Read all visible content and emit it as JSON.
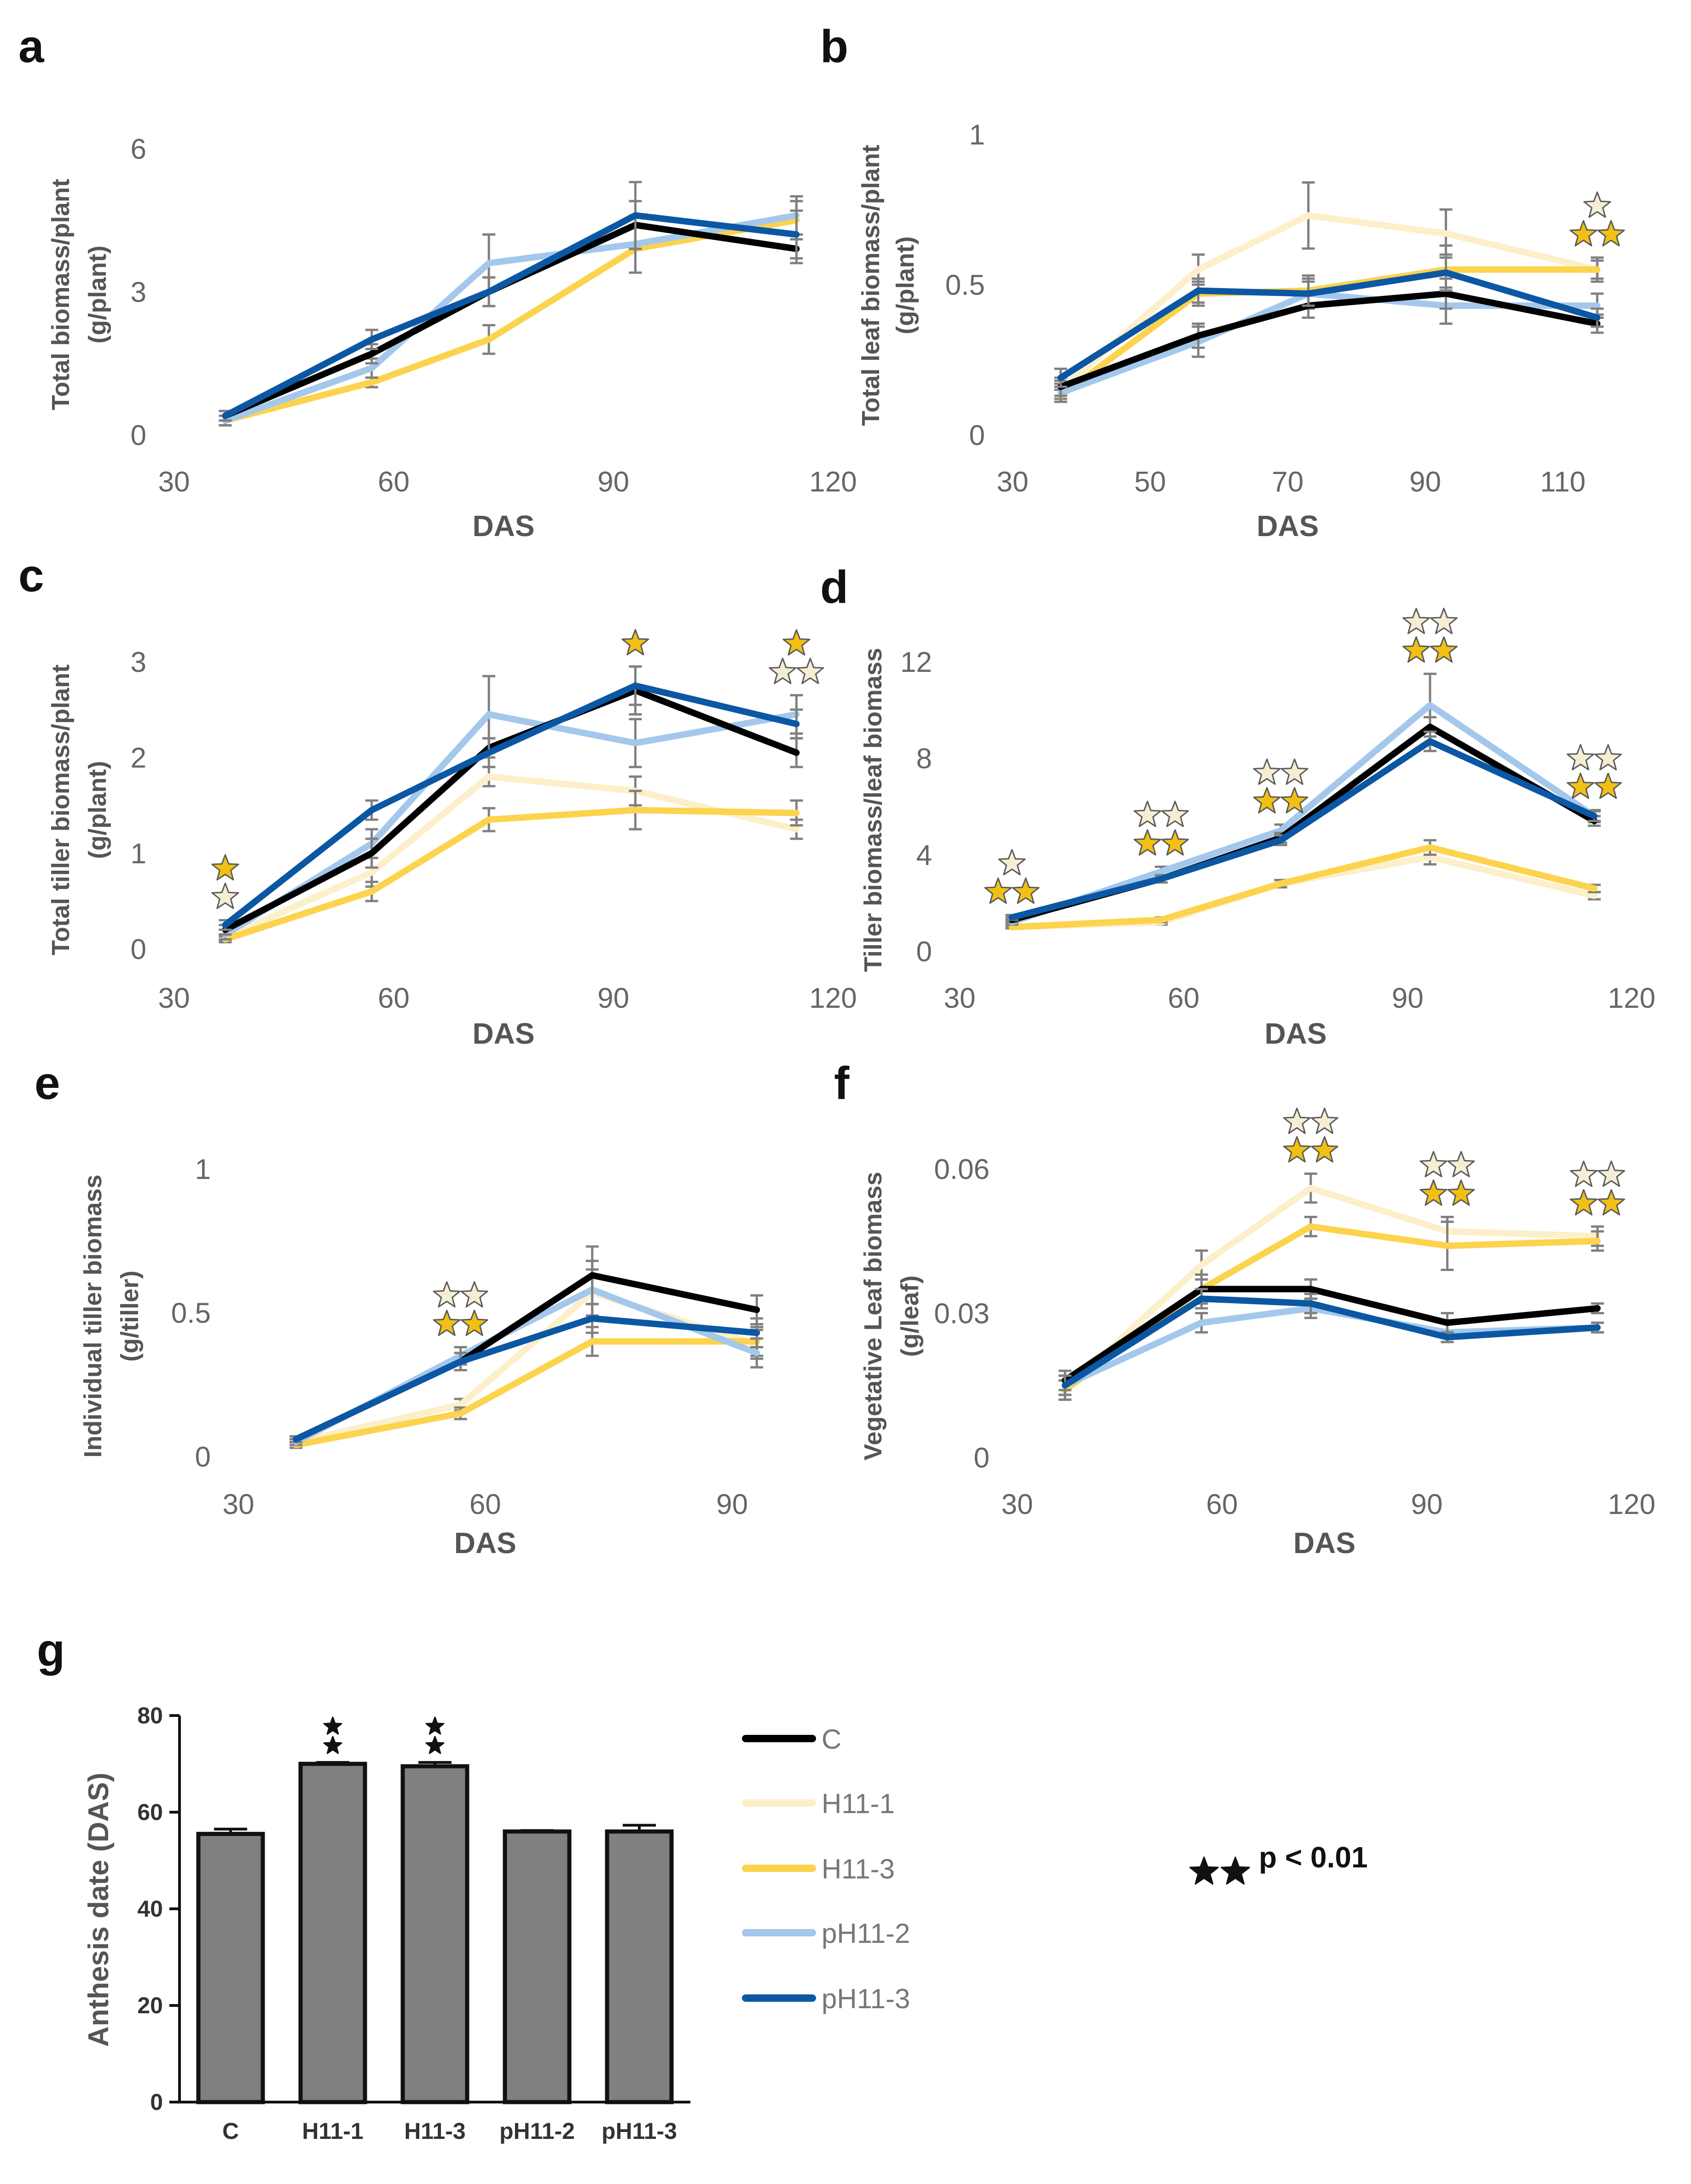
{
  "colors": {
    "C": "#000000",
    "H11-1": "#FCEFC9",
    "H11-3": "#FCD34D",
    "pH11-2": "#A3C8EC",
    "pH11-3": "#0B57A4",
    "error_bar": "#808080",
    "bar_fill": "#808080",
    "star_dark": "#F2C014",
    "star_light": "#F6EED4"
  },
  "legend": {
    "entries": [
      "C",
      "H11-1",
      "H11-3",
      "pH11-2",
      "pH11-3"
    ],
    "significance_label": "p < 0.01"
  },
  "chart_data": [
    {
      "panel": "a",
      "type": "line",
      "xlabel": "DAS",
      "ylabel_lines": [
        "Total biomass/plant",
        "(g/plant)"
      ],
      "xlim": [
        30,
        120
      ],
      "ylim": [
        0,
        6
      ],
      "xticks": [
        30,
        60,
        90,
        120
      ],
      "yticks": [
        0,
        3,
        6
      ],
      "x": [
        37,
        57,
        73,
        93,
        115
      ],
      "series": [
        {
          "name": "C",
          "values": [
            0.4,
            1.7,
            3.0,
            4.4,
            3.9
          ],
          "errors": [
            0.1,
            0.2,
            0.3,
            0.5,
            0.3
          ]
        },
        {
          "name": "H11-1",
          "values": [
            null,
            null,
            null,
            null,
            null
          ],
          "errors": [
            0,
            0,
            0,
            0,
            0
          ]
        },
        {
          "name": "H11-3",
          "values": [
            0.3,
            1.1,
            2.0,
            3.9,
            4.5
          ],
          "errors": [
            0.1,
            0.1,
            0.3,
            0.5,
            0.4
          ]
        },
        {
          "name": "pH11-2",
          "values": [
            0.3,
            1.4,
            3.6,
            4.0,
            4.6
          ],
          "errors": [
            0.1,
            0.2,
            0.6,
            0.6,
            0.4
          ]
        },
        {
          "name": "pH11-3",
          "values": [
            0.4,
            2.0,
            3.0,
            4.6,
            4.2
          ],
          "errors": [
            0.1,
            0.2,
            0.3,
            0.7,
            0.5
          ]
        }
      ],
      "annotations": []
    },
    {
      "panel": "b",
      "type": "line",
      "xlabel": "DAS",
      "ylabel_lines": [
        "Total leaf biomass/plant",
        "(g/plant)"
      ],
      "xlim": [
        30,
        120
      ],
      "ylim": [
        0,
        1
      ],
      "xticks": [
        30,
        50,
        70,
        90,
        110
      ],
      "ytick_labels": [
        "0",
        "0.5",
        "1"
      ],
      "yticks": [
        0,
        0.5,
        1
      ],
      "x": [
        37,
        57,
        73,
        93,
        115
      ],
      "series": [
        {
          "name": "C",
          "values": [
            0.16,
            0.33,
            0.43,
            0.47,
            0.37
          ],
          "errors": [
            0.03,
            0.04,
            0.04,
            0.05,
            0.03
          ]
        },
        {
          "name": "H11-1",
          "values": [
            0.15,
            0.55,
            0.73,
            0.67,
            0.55
          ],
          "errors": [
            0.03,
            0.05,
            0.11,
            0.08,
            0.04
          ]
        },
        {
          "name": "H11-3",
          "values": [
            0.13,
            0.47,
            0.48,
            0.55,
            0.55
          ],
          "errors": [
            0.02,
            0.04,
            0.05,
            0.08,
            0.03
          ]
        },
        {
          "name": "pH11-2",
          "values": [
            0.14,
            0.31,
            0.47,
            0.43,
            0.43
          ],
          "errors": [
            0.03,
            0.05,
            0.05,
            0.06,
            0.04
          ]
        },
        {
          "name": "pH11-3",
          "values": [
            0.19,
            0.48,
            0.47,
            0.54,
            0.39
          ],
          "errors": [
            0.03,
            0.04,
            0.04,
            0.06,
            0.03
          ]
        }
      ],
      "annotations": [
        {
          "x": 115,
          "rows": [
            [
              "light"
            ],
            [
              "dark",
              "dark"
            ]
          ]
        }
      ]
    },
    {
      "panel": "c",
      "type": "line",
      "xlabel": "DAS",
      "ylabel_lines": [
        "Total tiller biomass/plant",
        "(g/plant)"
      ],
      "xlim": [
        30,
        120
      ],
      "ylim": [
        0,
        3
      ],
      "xticks": [
        30,
        60,
        90,
        120
      ],
      "yticks": [
        0,
        1,
        2,
        3
      ],
      "x": [
        37,
        57,
        73,
        93,
        115
      ],
      "series": [
        {
          "name": "C",
          "values": [
            0.2,
            1.0,
            2.1,
            2.7,
            2.05
          ],
          "errors": [
            0.05,
            0.15,
            0.1,
            0.25,
            0.15
          ]
        },
        {
          "name": "H11-1",
          "values": [
            0.12,
            0.8,
            1.8,
            1.65,
            1.25
          ],
          "errors": [
            0.03,
            0.15,
            0.1,
            0.15,
            0.1
          ]
        },
        {
          "name": "H11-3",
          "values": [
            0.1,
            0.6,
            1.35,
            1.45,
            1.42
          ],
          "errors": [
            0.03,
            0.1,
            0.12,
            0.2,
            0.13
          ]
        },
        {
          "name": "pH11-2",
          "values": [
            0.15,
            1.1,
            2.45,
            2.15,
            2.45
          ],
          "errors": [
            0.05,
            0.15,
            0.4,
            0.25,
            0.2
          ]
        },
        {
          "name": "pH11-3",
          "values": [
            0.25,
            1.45,
            2.05,
            2.75,
            2.35
          ],
          "errors": [
            0.05,
            0.1,
            0.15,
            0.2,
            0.15
          ]
        }
      ],
      "annotations": [
        {
          "x": 37,
          "rows": [
            [
              "dark"
            ],
            [
              "light"
            ]
          ]
        },
        {
          "x": 93,
          "rows": [
            [
              "dark"
            ]
          ]
        },
        {
          "x": 115,
          "rows": [
            [
              "dark"
            ],
            [
              "light",
              "light"
            ]
          ]
        }
      ]
    },
    {
      "panel": "d",
      "type": "line",
      "xlabel": "DAS",
      "ylabel_lines": [
        "Tiller biomass/leaf biomass"
      ],
      "xlim": [
        30,
        120
      ],
      "ylim": [
        0,
        12
      ],
      "xticks": [
        30,
        60,
        90,
        120
      ],
      "yticks": [
        0,
        4,
        8,
        12
      ],
      "x": [
        37,
        57,
        73,
        93,
        115
      ],
      "series": [
        {
          "name": "C",
          "values": [
            1.3,
            3.0,
            4.7,
            9.3,
            5.4
          ],
          "errors": [
            0.1,
            0.15,
            0.2,
            0.4,
            0.2
          ]
        },
        {
          "name": "H11-1",
          "values": [
            1.0,
            1.2,
            2.8,
            3.9,
            2.3
          ],
          "errors": [
            0.05,
            0.1,
            0.15,
            0.3,
            0.15
          ]
        },
        {
          "name": "H11-3",
          "values": [
            1.0,
            1.3,
            2.8,
            4.3,
            2.6
          ],
          "errors": [
            0.05,
            0.1,
            0.15,
            0.3,
            0.15
          ]
        },
        {
          "name": "pH11-2",
          "values": [
            1.2,
            3.3,
            5.0,
            10.2,
            5.6
          ],
          "errors": [
            0.1,
            0.2,
            0.25,
            1.3,
            0.25
          ]
        },
        {
          "name": "pH11-3",
          "values": [
            1.4,
            3.0,
            4.6,
            8.7,
            5.6
          ],
          "errors": [
            0.1,
            0.15,
            0.2,
            0.4,
            0.2
          ]
        }
      ],
      "annotations": [
        {
          "x": 37,
          "rows": [
            [
              "light"
            ],
            [
              "dark",
              "dark"
            ]
          ]
        },
        {
          "x": 57,
          "rows": [
            [
              "light",
              "light"
            ],
            [
              "dark",
              "dark"
            ]
          ]
        },
        {
          "x": 73,
          "rows": [
            [
              "light",
              "light"
            ],
            [
              "dark",
              "dark"
            ]
          ]
        },
        {
          "x": 93,
          "rows": [
            [
              "light",
              "light"
            ],
            [
              "dark",
              "dark"
            ]
          ]
        },
        {
          "x": 115,
          "rows": [
            [
              "light",
              "light"
            ],
            [
              "dark",
              "dark"
            ]
          ]
        }
      ]
    },
    {
      "panel": "e",
      "type": "line",
      "xlabel": "DAS",
      "ylabel_lines": [
        "Individual tiller biomass",
        "(g/tiller)"
      ],
      "xlim": [
        30,
        95
      ],
      "ylim": [
        0,
        1
      ],
      "xticks": [
        30,
        60,
        90
      ],
      "ytick_labels": [
        "0",
        "0.5",
        "1"
      ],
      "yticks": [
        0,
        0.5,
        1
      ],
      "x": [
        37,
        57,
        73,
        93
      ],
      "series": [
        {
          "name": "C",
          "values": [
            0.06,
            0.33,
            0.63,
            0.51
          ],
          "errors": [
            0.01,
            0.03,
            0.1,
            0.05
          ]
        },
        {
          "name": "H11-1",
          "values": [
            0.05,
            0.18,
            0.57,
            0.39
          ],
          "errors": [
            0.01,
            0.02,
            0.08,
            0.05
          ]
        },
        {
          "name": "H11-3",
          "values": [
            0.04,
            0.15,
            0.4,
            0.4
          ],
          "errors": [
            0.01,
            0.02,
            0.05,
            0.05
          ]
        },
        {
          "name": "pH11-2",
          "values": [
            0.05,
            0.35,
            0.58,
            0.36
          ],
          "errors": [
            0.01,
            0.03,
            0.1,
            0.05
          ]
        },
        {
          "name": "pH11-3",
          "values": [
            0.06,
            0.33,
            0.48,
            0.43
          ],
          "errors": [
            0.01,
            0.03,
            0.05,
            0.05
          ]
        }
      ],
      "annotations": [
        {
          "x": 57,
          "rows": [
            [
              "light",
              "light"
            ],
            [
              "dark",
              "dark"
            ]
          ]
        }
      ]
    },
    {
      "panel": "f",
      "type": "line",
      "xlabel": "DAS",
      "ylabel_lines": [
        "Vegetative Leaf biomass",
        "(g/leaf)"
      ],
      "xlim": [
        30,
        120
      ],
      "ylim": [
        0,
        0.06
      ],
      "xticks": [
        30,
        60,
        90,
        120
      ],
      "ytick_labels": [
        "0",
        "0.03",
        "0.06"
      ],
      "yticks": [
        0,
        0.03,
        0.06
      ],
      "x": [
        37,
        57,
        73,
        93,
        115
      ],
      "series": [
        {
          "name": "C",
          "values": [
            0.016,
            0.035,
            0.035,
            0.028,
            0.031
          ],
          "errors": [
            0.002,
            0.003,
            0.002,
            0.002,
            0.001
          ]
        },
        {
          "name": "H11-1",
          "values": [
            0.014,
            0.04,
            0.056,
            0.047,
            0.046
          ],
          "errors": [
            0.002,
            0.003,
            0.003,
            0.003,
            0.002
          ]
        },
        {
          "name": "H11-3",
          "values": [
            0.014,
            0.035,
            0.048,
            0.044,
            0.045
          ],
          "errors": [
            0.002,
            0.003,
            0.002,
            0.005,
            0.002
          ]
        },
        {
          "name": "pH11-2",
          "values": [
            0.015,
            0.028,
            0.031,
            0.026,
            0.027
          ],
          "errors": [
            0.002,
            0.002,
            0.002,
            0.002,
            0.001
          ]
        },
        {
          "name": "pH11-3",
          "values": [
            0.015,
            0.033,
            0.032,
            0.025,
            0.027
          ],
          "errors": [
            0.002,
            0.002,
            0.002,
            0.001,
            0.001
          ]
        }
      ],
      "annotations": [
        {
          "x": 73,
          "rows": [
            [
              "light",
              "light"
            ],
            [
              "dark",
              "dark"
            ]
          ]
        },
        {
          "x": 93,
          "rows": [
            [
              "light",
              "light"
            ],
            [
              "dark",
              "dark"
            ]
          ]
        },
        {
          "x": 115,
          "rows": [
            [
              "light",
              "light"
            ],
            [
              "dark",
              "dark"
            ]
          ]
        }
      ]
    },
    {
      "panel": "g",
      "type": "bar",
      "xlabel": "",
      "ylabel": "Anthesis date (DAS)",
      "categories": [
        "C",
        "H11-1",
        "H11-3",
        "pH11-2",
        "pH11-3"
      ],
      "values": [
        55.5,
        70.0,
        69.5,
        56.0,
        56.0
      ],
      "errors": [
        1.0,
        0.3,
        0.8,
        0.2,
        1.3
      ],
      "significant": [
        false,
        true,
        true,
        false,
        false
      ],
      "ylim": [
        0,
        80
      ],
      "yticks": [
        0,
        20,
        40,
        60,
        80
      ]
    }
  ]
}
